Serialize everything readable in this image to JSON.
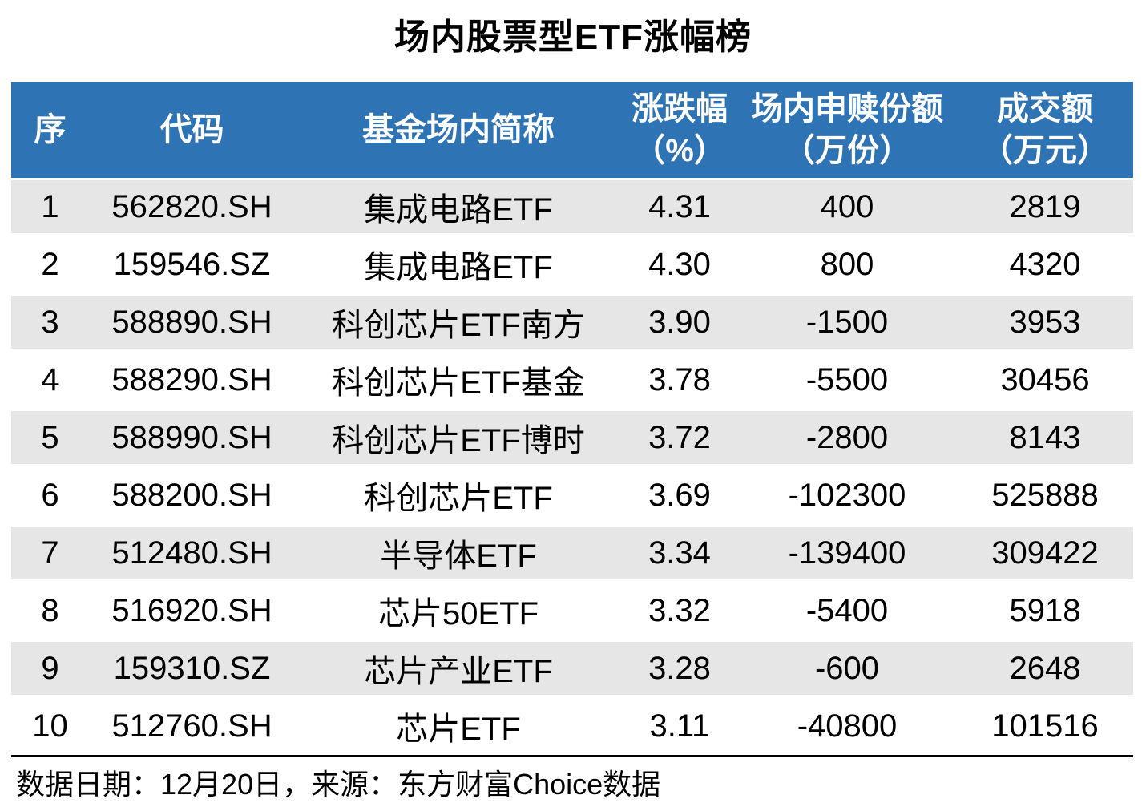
{
  "title": "场内股票型ETF涨幅榜",
  "table": {
    "columns": [
      {
        "key": "rank",
        "label": "序",
        "sub": ""
      },
      {
        "key": "code",
        "label": "代码",
        "sub": ""
      },
      {
        "key": "name",
        "label": "基金场内简称",
        "sub": ""
      },
      {
        "key": "change-pct",
        "label": "涨跌幅",
        "sub": "（%）"
      },
      {
        "key": "shares",
        "label": "场内申赎份额",
        "sub": "（万份）"
      },
      {
        "key": "turnover",
        "label": "成交额",
        "sub": "（万元）"
      }
    ],
    "rows": [
      [
        "1",
        "562820.SH",
        "集成电路ETF",
        "4.31",
        "400",
        "2819"
      ],
      [
        "2",
        "159546.SZ",
        "集成电路ETF",
        "4.30",
        "800",
        "4320"
      ],
      [
        "3",
        "588890.SH",
        "科创芯片ETF南方",
        "3.90",
        "-1500",
        "3953"
      ],
      [
        "4",
        "588290.SH",
        "科创芯片ETF基金",
        "3.78",
        "-5500",
        "30456"
      ],
      [
        "5",
        "588990.SH",
        "科创芯片ETF博时",
        "3.72",
        "-2800",
        "8143"
      ],
      [
        "6",
        "588200.SH",
        "科创芯片ETF",
        "3.69",
        "-102300",
        "525888"
      ],
      [
        "7",
        "512480.SH",
        "半导体ETF",
        "3.34",
        "-139400",
        "309422"
      ],
      [
        "8",
        "516920.SH",
        "芯片50ETF",
        "3.32",
        "-5400",
        "5918"
      ],
      [
        "9",
        "159310.SZ",
        "芯片产业ETF",
        "3.28",
        "-600",
        "2648"
      ],
      [
        "10",
        "512760.SH",
        "芯片ETF",
        "3.11",
        "-40800",
        "101516"
      ]
    ]
  },
  "footer": {
    "note": "数据日期：12月20日，来源：东方财富Choice数据"
  },
  "colors": {
    "header_bg": "#2E74B5",
    "header_text": "#FFFFFF",
    "alt_row_bg": "#E6E6E6",
    "rule_color": "#000000"
  }
}
